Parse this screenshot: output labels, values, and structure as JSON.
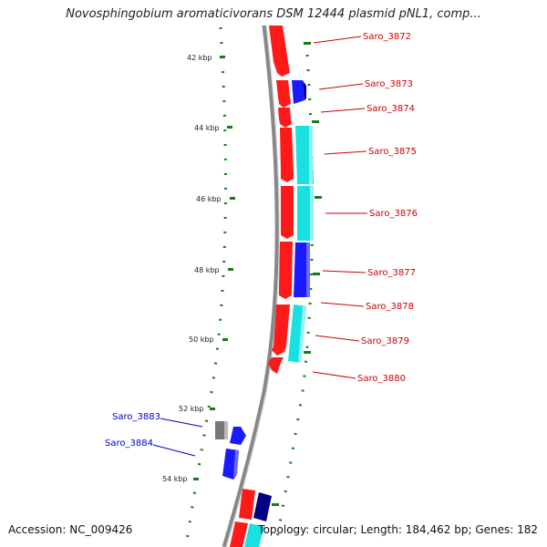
{
  "title": "Novosphingobium aromaticivorans DSM 12444 plasmid pNL1, comp...",
  "accession": "Accession: NC_009426",
  "summary": "Topology: circular; Length: 184,462 bp; Genes: 182",
  "colors": {
    "backbone": "#888888",
    "gc_dots": "#1a7a1a",
    "forward_red": "#ff1a1a",
    "cyan": "#1ae0e0",
    "blue": "#1a1aff",
    "navy": "#000080",
    "gray": "#777777",
    "label_red": "#cc0000",
    "label_blue": "#0000cc"
  },
  "ticks": [
    {
      "label": "42 kbp"
    },
    {
      "label": "44 kbp"
    },
    {
      "label": "46 kbp"
    },
    {
      "label": "48 kbp"
    },
    {
      "label": "50 kbp"
    },
    {
      "label": "52 kbp"
    },
    {
      "label": "54 kbp"
    }
  ],
  "gene_labels": [
    {
      "name": "Saro_3872"
    },
    {
      "name": "Saro_3873"
    },
    {
      "name": "Saro_3874"
    },
    {
      "name": "Saro_3875"
    },
    {
      "name": "Saro_3876"
    },
    {
      "name": "Saro_3877"
    },
    {
      "name": "Saro_3878"
    },
    {
      "name": "Saro_3879"
    },
    {
      "name": "Saro_3880"
    },
    {
      "name": "Saro_3883"
    },
    {
      "name": "Saro_3884"
    }
  ]
}
